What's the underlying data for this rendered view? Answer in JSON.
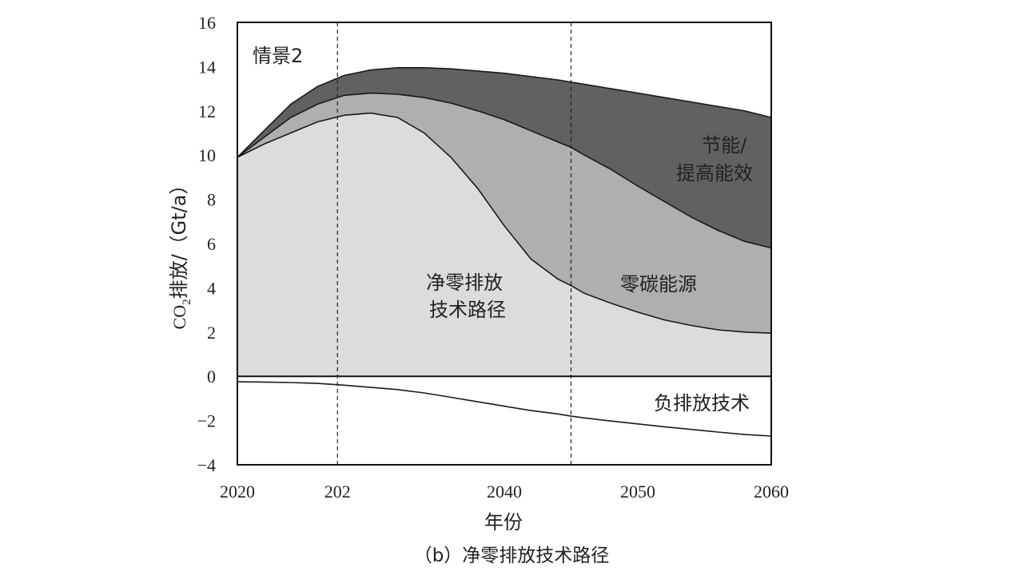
{
  "caption": "（b）净零排放技术路径",
  "chart_data": {
    "type": "area",
    "title": "",
    "scenario_label": "情景2",
    "xlabel": "年份",
    "ylabel_main": "CO",
    "ylabel_sub": "2",
    "ylabel_rest": "排放/（Gt/a）",
    "xlim": [
      2020,
      2060
    ],
    "ylim": [
      -4,
      16
    ],
    "x_ticks": [
      "2020",
      "202",
      "2040",
      "2050",
      "2060"
    ],
    "y_ticks": [
      "16",
      "14",
      "12",
      "10",
      "8",
      "6",
      "4",
      "2",
      "0",
      "−2",
      "−4"
    ],
    "reference_lines_x": [
      2027.5,
      2045
    ],
    "x": [
      2020,
      2022,
      2024,
      2026,
      2028,
      2030,
      2032,
      2034,
      2036,
      2038,
      2040,
      2042,
      2044,
      2045,
      2046,
      2048,
      2050,
      2052,
      2054,
      2056,
      2058,
      2060
    ],
    "boundaries": [
      {
        "name": "节能/提高能效",
        "values": [
          9.9,
          11.1,
          12.3,
          13.1,
          13.6,
          13.85,
          13.95,
          13.95,
          13.9,
          13.8,
          13.7,
          13.55,
          13.4,
          13.3,
          13.2,
          13.0,
          12.8,
          12.6,
          12.4,
          12.2,
          12.0,
          11.7
        ]
      },
      {
        "name": "零碳能源",
        "values": [
          9.9,
          10.8,
          11.7,
          12.3,
          12.7,
          12.8,
          12.75,
          12.6,
          12.35,
          12.0,
          11.6,
          11.1,
          10.6,
          10.35,
          10.0,
          9.35,
          8.6,
          7.9,
          7.2,
          6.6,
          6.1,
          5.8
        ]
      },
      {
        "name": "净零排放技术路径",
        "values": [
          9.9,
          10.5,
          11.0,
          11.5,
          11.8,
          11.9,
          11.7,
          11.0,
          9.9,
          8.5,
          6.8,
          5.3,
          4.4,
          4.1,
          3.75,
          3.3,
          2.9,
          2.55,
          2.3,
          2.1,
          2.0,
          1.95
        ]
      },
      {
        "name": "负排放技术",
        "values": [
          -0.25,
          -0.26,
          -0.28,
          -0.32,
          -0.4,
          -0.5,
          -0.6,
          -0.75,
          -0.95,
          -1.15,
          -1.35,
          -1.55,
          -1.7,
          -1.8,
          -1.88,
          -2.02,
          -2.15,
          -2.28,
          -2.4,
          -2.52,
          -2.63,
          -2.7
        ]
      }
    ],
    "region_labels": {
      "efficiency": [
        "节能/",
        "提高能效"
      ],
      "zero_carbon": "零碳能源",
      "net_zero": [
        "净零排放",
        "技术路径"
      ],
      "negative": "负排放技术"
    },
    "colors": {
      "efficiency": "#626062",
      "zero_carbon": "#b0afb0",
      "net_zero": "#dcdcdc",
      "negative": "#ffffff",
      "line": "#1a1a1a"
    }
  }
}
